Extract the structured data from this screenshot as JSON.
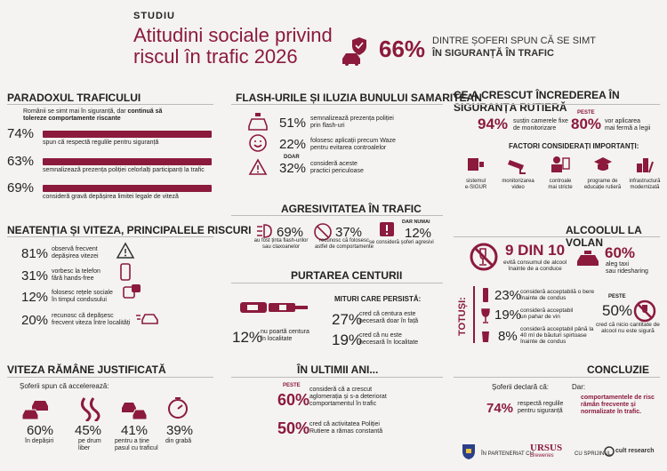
{
  "header": {
    "kicker": "STUDIU",
    "title_line1": "Atitudini sociale privind",
    "title_line2": "riscul în trafic 2026",
    "headline_pct": "66%",
    "headline_text1": "DINTRE ȘOFERI SPUN CĂ SE SIMT",
    "headline_text2": "ÎN SIGURANȚĂ ÎN TRAFIC"
  },
  "paradox": {
    "title": "PARADOXUL TRAFICULUI",
    "intro1": "Românii se simt mai în siguranță, dar ",
    "intro1_bold": "continuă să",
    "intro2_bold": "tolereze comportamente riscante",
    "rows": [
      {
        "pct": "74%",
        "text": "spun că respectă regulile pentru siguranță",
        "fill": 0.74
      },
      {
        "pct": "63%",
        "text": "semnalizează prezența poliției celorlalți participanți la trafic",
        "fill": 0.63
      },
      {
        "pct": "69%",
        "text": "consideră gravă depășirea limitei legale de viteză",
        "fill": 0.69
      }
    ]
  },
  "flash": {
    "title": "FLASH-URILE ȘI ILUZIA BUNULUI SAMARITEAN",
    "rows": [
      {
        "pct": "51%",
        "text1": "semnalizează prezența poliției",
        "text2": "prin flash-uri"
      },
      {
        "pct": "22%",
        "text1": "folosesc aplicații precum Waze",
        "text2": "pentru evitarea controalelor"
      },
      {
        "pct": "32%",
        "pre": "DOAR",
        "text1": "consideră aceste",
        "text2": "practici periculoase"
      }
    ]
  },
  "trust": {
    "title": "CE A CRESCUT ÎNCREDEREA ÎN SIGURANȚA RUTIERĂ",
    "pct1": "94%",
    "text1a": "susțin camerele fixe",
    "text1b": "de monitorizare",
    "pre2": "PESTE",
    "pct2": "80%",
    "text2a": "vor aplicarea",
    "text2b": "mai fermă a legii",
    "factors_title": "FACTORI CONSIDERAȚI IMPORTANȚI:",
    "factors": [
      {
        "l1": "sistemul",
        "l2": "e-SIGUR"
      },
      {
        "l1": "monitorizarea",
        "l2": "video"
      },
      {
        "l1": "controale",
        "l2": "mai stricte"
      },
      {
        "l1": "programe de",
        "l2": "educație rutieră"
      },
      {
        "l1": "infrastructură",
        "l2": "modernizată"
      }
    ]
  },
  "aggr": {
    "title": "AGRESIVITATEA ÎN TRAFIC",
    "items": [
      {
        "pct": "69%",
        "l1": "au fost ținta flash-urilor",
        "l2": "sau claxoanelor"
      },
      {
        "pct": "37%",
        "l1": "recunosc că folosesc",
        "l2": "astfel de comportamente"
      },
      {
        "pre": "DAR NUMAI",
        "pct": "12%",
        "l1": "se consideră șoferi agresivi",
        "l2": ""
      }
    ]
  },
  "attention": {
    "title": "NEATENȚIA ȘI VITEZA, PRINCIPALELE RISCURI",
    "rows": [
      {
        "pct": "81%",
        "l1": "observă frecvent",
        "l2": "depășirea vitezei"
      },
      {
        "pct": "31%",
        "l1": "vorbesc la telefon",
        "l2": "fără hands-free"
      },
      {
        "pct": "12%",
        "l1": "folosesc rețele sociale",
        "l2": "în timpul condusului"
      },
      {
        "pct": "20%",
        "l1": "recunosc că depășesc",
        "l2": "frecvent viteza între localități"
      }
    ]
  },
  "belt": {
    "title": "PURTAREA CENTURII",
    "pct": "12%",
    "l1": "nu poartă centura",
    "l2": "în localitate",
    "myths_title": "MITURI CARE PERSISTĂ:",
    "myths": [
      {
        "pct": "27%",
        "l1": "cred că centura este",
        "l2": "necesară doar în față"
      },
      {
        "pct": "19%",
        "l1": "cred că nu este",
        "l2": "necesară în localitate"
      }
    ]
  },
  "alcohol": {
    "title": "ALCOOLUL LA VOLAN",
    "big": "9 DIN 10",
    "big_l1": "evită consumul de alcool",
    "big_l2": "înainte de a conduce",
    "taxi_pct": "60%",
    "taxi_l1": "aleg taxi",
    "taxi_l2": "sau ridesharing",
    "totusi": "TOTUȘI:",
    "rows": [
      {
        "pct": "23%",
        "l1": "consideră acceptabilă o bere",
        "l2": "înainte de condus"
      },
      {
        "pct": "19%",
        "l1": "consideră acceptabil",
        "l2": "un pahar de vin"
      },
      {
        "pct": "8%",
        "l1": "consideră acceptabil până la",
        "l2": "40 ml de băuturi spirtoase",
        "l3": "înainte de condus"
      }
    ],
    "over_pre": "PESTE",
    "over_pct": "50%",
    "over_l1": "cred că nicio cantitate de",
    "over_l2": "alcool nu este sigură"
  },
  "speed": {
    "title": "VITEZA RĂMÂNE JUSTIFICATĂ",
    "intro": "Șoferii spun că accelerează:",
    "items": [
      {
        "pct": "60%",
        "l1": "în depășiri",
        "l2": ""
      },
      {
        "pct": "45%",
        "l1": "pe drum",
        "l2": "liber"
      },
      {
        "pct": "41%",
        "l1": "pentru a ține",
        "l2": "pasul cu traficul"
      },
      {
        "pct": "39%",
        "l1": "din grabă",
        "l2": ""
      }
    ]
  },
  "lastyears": {
    "title": "ÎN ULTIMII ANI...",
    "rows": [
      {
        "pre": "PESTE",
        "pct": "60%",
        "l1": "consideră că a crescut",
        "l2": "aglomerația și s-a deteriorat",
        "l3": "comportamentul în trafic"
      },
      {
        "pre": "",
        "pct": "50%",
        "l1": "cred că activitatea Poliției",
        "l2": "Rutiere a rămas constantă",
        "l3": ""
      }
    ]
  },
  "conclusion": {
    "title": "CONCLUZIE",
    "left_intro": "Șoferii declară că:",
    "pct": "74%",
    "l1": "respectă regulile",
    "l2": "pentru siguranță",
    "right_intro": "Dar:",
    "r1": "comportamentele de risc",
    "r2": "rămân frecvente și",
    "r3": "normalizate în trafic."
  },
  "footer": {
    "partner": "ÎN PARTENERIAT CU",
    "ursus": "URSUS",
    "ursus_sub": "Breweries",
    "support": "CU SPRIJINUL",
    "cult": "cult research"
  },
  "colors": {
    "accent": "#8b1a3c",
    "bg": "#f4f3f1"
  }
}
